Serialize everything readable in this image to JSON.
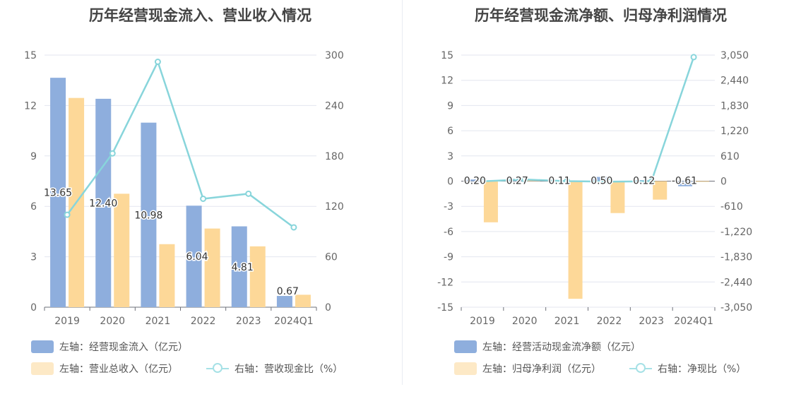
{
  "chart_data": [
    {
      "type": "bar",
      "title": "历年经营现金流入、营业收入情况",
      "categories": [
        "2019",
        "2020",
        "2021",
        "2022",
        "2023",
        "2024Q1"
      ],
      "y_left": {
        "min": 0,
        "max": 15,
        "ticks": [
          0,
          3,
          6,
          9,
          12,
          15
        ],
        "tick_labels": [
          "0",
          "3",
          "6",
          "9",
          "12",
          "15"
        ]
      },
      "y_right": {
        "min": 0,
        "max": 300,
        "ticks": [
          0,
          60,
          120,
          180,
          240,
          300
        ],
        "tick_labels": [
          "0",
          "60",
          "120",
          "180",
          "240",
          "300"
        ]
      },
      "series": [
        {
          "name": "左轴：经营现金流入（亿元）",
          "type": "bar",
          "axis": "left",
          "color": "#8eaedd",
          "values": [
            13.65,
            12.4,
            10.98,
            6.04,
            4.81,
            0.67
          ],
          "labels": [
            "13.65",
            "12.40",
            "10.98",
            "6.04",
            "4.81",
            "0.67"
          ]
        },
        {
          "name": "左轴：营业总收入（亿元）",
          "type": "bar",
          "axis": "left",
          "color": "#fdd898",
          "values": [
            12.45,
            6.75,
            3.75,
            4.68,
            3.62,
            0.74
          ]
        },
        {
          "name": "右轴：营收现金比（%）",
          "type": "line",
          "axis": "right",
          "color": "#88d5db",
          "values": [
            110,
            183,
            292,
            129,
            135,
            95
          ]
        }
      ]
    },
    {
      "type": "bar",
      "title": "历年经营现金流净额、归母净利润情况",
      "categories": [
        "2019",
        "2020",
        "2021",
        "2022",
        "2023",
        "2024Q1"
      ],
      "y_left": {
        "min": -15,
        "max": 15,
        "ticks": [
          -15,
          -12,
          -9,
          -6,
          -3,
          0,
          3,
          6,
          9,
          12,
          15
        ],
        "tick_labels": [
          "-15",
          "-12",
          "-9",
          "-6",
          "-3",
          "0",
          "3",
          "6",
          "9",
          "12",
          "15"
        ]
      },
      "y_right": {
        "min": -3050,
        "max": 3050,
        "ticks": [
          -3050,
          -2440,
          -1830,
          -1220,
          -610,
          0,
          610,
          1220,
          1830,
          2440,
          3050
        ],
        "tick_labels": [
          "-3,050",
          "-2,440",
          "-1,830",
          "-1,220",
          "-610",
          "0",
          "610",
          "1,220",
          "1,830",
          "2,440",
          "3,050"
        ]
      },
      "series": [
        {
          "name": "左轴：经营活动现金流净额（亿元）",
          "type": "bar",
          "axis": "left",
          "color": "#8eaedd",
          "values": [
            0.2,
            0.27,
            0.11,
            0.5,
            0.12,
            -0.61
          ],
          "labels": [
            "0.20",
            "0.27",
            "0.11",
            "0.50",
            "0.12",
            "-0.61"
          ]
        },
        {
          "name": "左轴：归母净利润（亿元）",
          "type": "bar",
          "axis": "left",
          "color": "#fdd898",
          "values": [
            -4.9,
            0.2,
            -14.0,
            -3.8,
            -2.2,
            -0.01
          ]
        },
        {
          "name": "右轴：净现比（%）",
          "type": "line",
          "axis": "right",
          "color": "#88d5db",
          "values": [
            -4,
            40,
            -1,
            -13,
            -5,
            3000
          ]
        }
      ]
    }
  ]
}
